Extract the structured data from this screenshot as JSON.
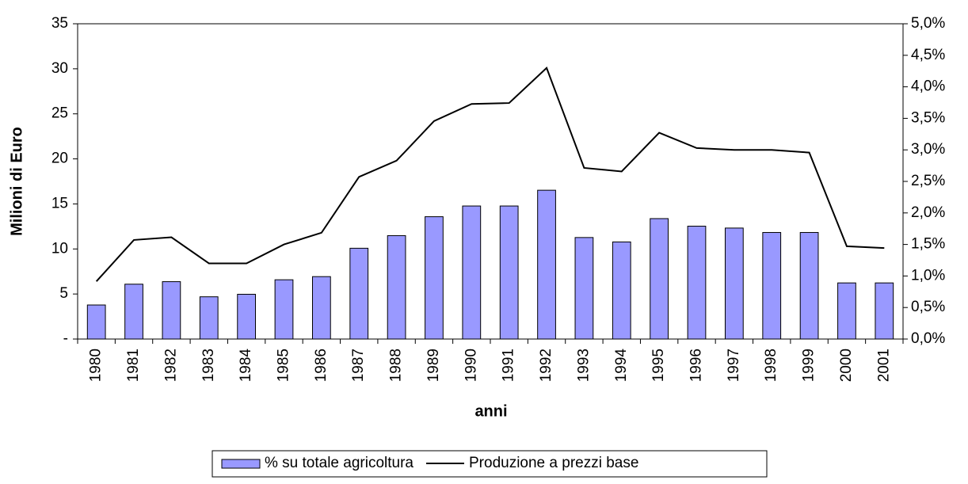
{
  "chart_data": {
    "type": "bar-line",
    "xlabel": "anni",
    "ylabel": "Milioni di Euro",
    "categories": [
      "1980",
      "1981",
      "1982",
      "1983",
      "1984",
      "1985",
      "1986",
      "1987",
      "1988",
      "1989",
      "1990",
      "1991",
      "1992",
      "1993",
      "1994",
      "1995",
      "1996",
      "1997",
      "1998",
      "1999",
      "2000",
      "2001"
    ],
    "series": [
      {
        "name": "% su totale agricoltura",
        "type": "bar",
        "axis": "y2",
        "color": "#9999ff",
        "values": [
          0.54,
          0.87,
          0.91,
          0.67,
          0.71,
          0.94,
          0.99,
          1.44,
          1.64,
          1.94,
          2.11,
          2.11,
          2.36,
          1.61,
          1.54,
          1.91,
          1.79,
          1.76,
          1.69,
          1.69,
          0.89,
          0.89
        ]
      },
      {
        "name": "Produzione a prezzi base",
        "type": "line",
        "axis": "y",
        "color": "#000000",
        "values": [
          6.4,
          11.0,
          11.3,
          8.4,
          8.4,
          10.5,
          11.8,
          18.0,
          19.8,
          24.2,
          26.1,
          26.2,
          30.1,
          19.0,
          18.6,
          22.9,
          21.2,
          21.0,
          21.0,
          20.7,
          10.3,
          10.1
        ]
      }
    ],
    "ylim": [
      0,
      35
    ],
    "yticks": [
      {
        "value": 0,
        "label": "-"
      },
      5,
      10,
      15,
      20,
      25,
      30,
      35
    ],
    "y2lim": [
      0,
      5
    ],
    "y2ticks": [
      {
        "value": 0,
        "label": "0,0%"
      },
      {
        "value": 0.5,
        "label": "0,5%"
      },
      {
        "value": 1,
        "label": "1,0%"
      },
      {
        "value": 1.5,
        "label": "1,5%"
      },
      {
        "value": 2,
        "label": "2,0%"
      },
      {
        "value": 2.5,
        "label": "2,5%"
      },
      {
        "value": 3,
        "label": "3,0%"
      },
      {
        "value": 3.5,
        "label": "3,5%"
      },
      {
        "value": 4,
        "label": "4,0%"
      },
      {
        "value": 4.5,
        "label": "4,5%"
      },
      {
        "value": 5,
        "label": "5,0%"
      }
    ]
  }
}
